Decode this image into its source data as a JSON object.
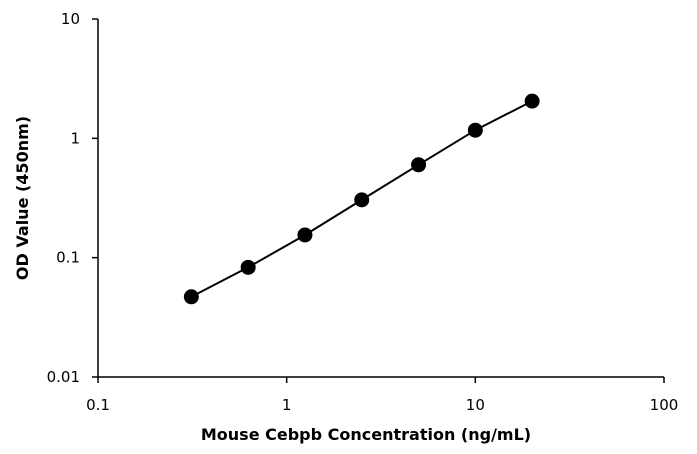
{
  "chart_data": {
    "type": "line",
    "title": "",
    "xlabel": "Mouse Cebpb Concentration (ng/mL)",
    "ylabel": "OD Value (450nm)",
    "x_scale": "log",
    "y_scale": "log",
    "xlim": [
      0.1,
      100
    ],
    "ylim": [
      0.01,
      10
    ],
    "x_ticks": [
      0.1,
      1,
      10,
      100
    ],
    "x_tick_labels": [
      "0.1",
      "1",
      "10",
      "100"
    ],
    "y_ticks": [
      0.01,
      0.1,
      1,
      10
    ],
    "y_tick_labels": [
      "0.01",
      "0.1",
      "1",
      "10"
    ],
    "grid": false,
    "legend": "none",
    "series": [
      {
        "x": [
          0.3125,
          0.625,
          1.25,
          2.5,
          5,
          10,
          20
        ],
        "y": [
          0.047,
          0.083,
          0.155,
          0.305,
          0.6,
          1.17,
          2.05
        ],
        "marker": "circle",
        "color": "#000000"
      }
    ]
  }
}
